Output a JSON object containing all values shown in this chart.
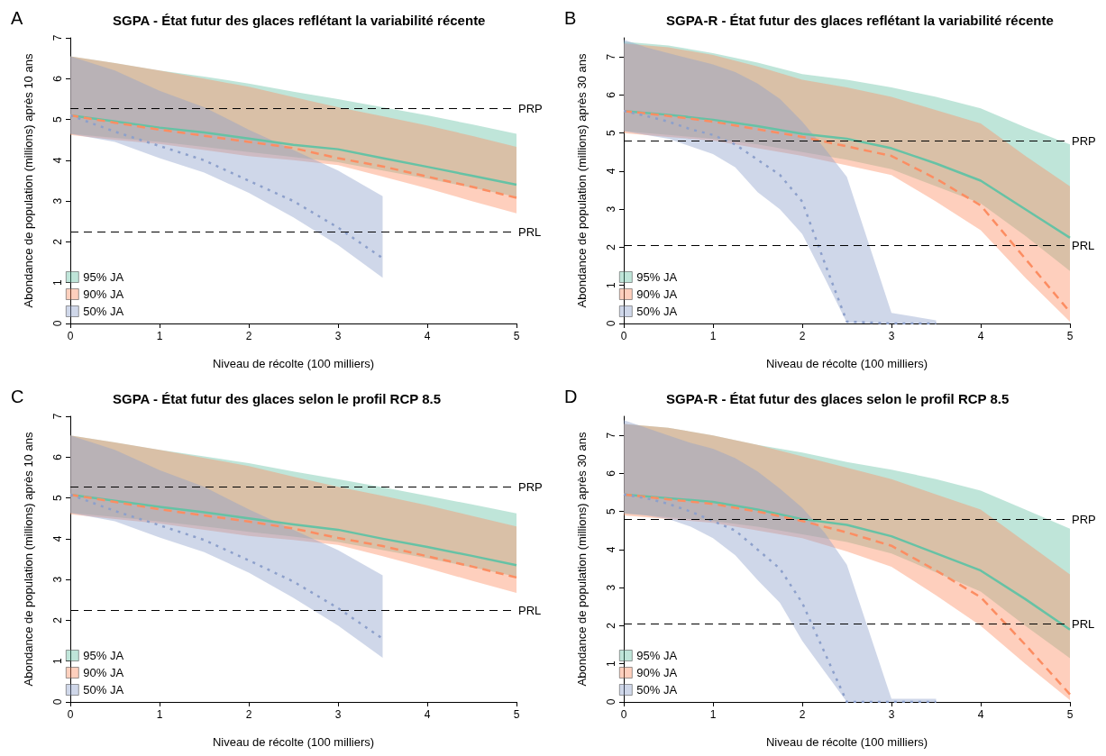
{
  "chart_data": [
    {
      "type": "line",
      "title": "SGPA - État futur des glaces reflétant la variabilité récente",
      "annotations": [
        "A"
      ],
      "xlabel": "Niveau de récolte (100 milliers)",
      "ylabel": "Abondance de population (millions) après 10 ans",
      "xlim": [
        0,
        5
      ],
      "xticks": [
        0,
        1,
        2,
        3,
        4,
        5
      ],
      "ylim": [
        0,
        7
      ],
      "yticks": [
        0,
        1,
        2,
        3,
        4,
        5,
        6,
        7
      ],
      "legend": "bottom left",
      "ref_lines": [
        {
          "axis": "y",
          "value": 5.27,
          "label": "PRP",
          "line_style": "dashed",
          "color": "#000000"
        },
        {
          "axis": "y",
          "value": 2.25,
          "label": "PRL",
          "line_style": "dashed",
          "color": "#000000"
        }
      ],
      "series": [
        {
          "name": "95% JA",
          "color": "#66c2a5",
          "line_style": "solid",
          "x": [
            0,
            0.5,
            1,
            1.5,
            2,
            2.5,
            3,
            3.5,
            4,
            4.5,
            5
          ],
          "values": [
            5.1,
            4.95,
            4.8,
            4.68,
            4.53,
            4.38,
            4.27,
            4.05,
            3.84,
            3.62,
            3.4
          ],
          "lower": [
            4.65,
            4.55,
            4.45,
            4.33,
            4.2,
            4.08,
            3.95,
            3.75,
            3.55,
            3.33,
            3.1
          ],
          "upper": [
            6.55,
            6.38,
            6.2,
            6.05,
            5.88,
            5.68,
            5.5,
            5.3,
            5.1,
            4.88,
            4.65
          ]
        },
        {
          "name": "90% JA",
          "color": "#fc8d62",
          "line_style": "dashed",
          "x": [
            0,
            0.5,
            1,
            1.5,
            2,
            2.5,
            3,
            3.5,
            4,
            4.5,
            5
          ],
          "values": [
            5.1,
            4.92,
            4.75,
            4.6,
            4.45,
            4.3,
            4.05,
            3.85,
            3.6,
            3.35,
            3.08
          ],
          "lower": [
            4.62,
            4.5,
            4.4,
            4.25,
            4.1,
            4.0,
            3.88,
            3.6,
            3.31,
            3.0,
            2.7
          ],
          "upper": [
            6.55,
            6.38,
            6.2,
            6.0,
            5.8,
            5.55,
            5.3,
            5.08,
            4.85,
            4.6,
            4.33
          ]
        },
        {
          "name": "50% JA",
          "color": "#8da0cb",
          "line_style": "dotted",
          "x": [
            0,
            0.5,
            1,
            1.5,
            2,
            2.5,
            3,
            3.5
          ],
          "values": [
            5.1,
            4.7,
            4.35,
            4.0,
            3.5,
            3.0,
            2.35,
            1.6
          ],
          "lower": [
            4.65,
            4.45,
            4.05,
            3.7,
            3.2,
            2.6,
            1.92,
            1.12
          ],
          "upper": [
            6.55,
            6.2,
            5.7,
            5.3,
            4.75,
            4.25,
            3.75,
            3.12
          ]
        }
      ]
    },
    {
      "type": "line",
      "title": "SGPA-R - État futur des glaces reflétant la variabilité récente",
      "annotations": [
        "B"
      ],
      "xlabel": "Niveau de récolte (100 milliers)",
      "ylabel": "Abondance de population (millions) après 30 ans",
      "xlim": [
        0,
        5
      ],
      "xticks": [
        0,
        1,
        2,
        3,
        4,
        5
      ],
      "ylim": [
        0,
        7.5
      ],
      "yticks": [
        0,
        1,
        2,
        3,
        4,
        5,
        6,
        7
      ],
      "legend": "bottom left",
      "ref_lines": [
        {
          "axis": "y",
          "value": 4.8,
          "label": "PRP",
          "line_style": "dashed",
          "color": "#000000"
        },
        {
          "axis": "y",
          "value": 2.05,
          "label": "PRL",
          "line_style": "dashed",
          "color": "#000000"
        }
      ],
      "series": [
        {
          "name": "95% JA",
          "color": "#66c2a5",
          "line_style": "solid",
          "x": [
            0,
            0.5,
            1,
            1.5,
            2,
            2.5,
            3,
            3.5,
            4,
            4.5,
            5
          ],
          "values": [
            5.58,
            5.48,
            5.35,
            5.18,
            4.98,
            4.85,
            4.6,
            4.2,
            3.75,
            3.0,
            2.25
          ],
          "lower": [
            5.05,
            4.95,
            4.85,
            4.7,
            4.5,
            4.3,
            4.05,
            3.6,
            3.15,
            2.3,
            1.38
          ],
          "upper": [
            7.4,
            7.3,
            7.1,
            6.85,
            6.55,
            6.4,
            6.2,
            5.95,
            5.65,
            5.15,
            4.7
          ]
        },
        {
          "name": "90% JA",
          "color": "#fc8d62",
          "line_style": "dashed",
          "x": [
            0,
            0.5,
            1,
            1.5,
            2,
            2.5,
            3,
            3.5,
            4,
            4.5,
            5
          ],
          "values": [
            5.58,
            5.45,
            5.3,
            5.1,
            4.9,
            4.65,
            4.4,
            3.8,
            3.1,
            1.7,
            0.3
          ],
          "lower": [
            5.0,
            4.9,
            4.8,
            4.6,
            4.4,
            4.15,
            3.9,
            3.2,
            2.45,
            1.2,
            0.05
          ],
          "upper": [
            7.35,
            7.25,
            7.05,
            6.75,
            6.4,
            6.2,
            5.95,
            5.6,
            5.25,
            4.4,
            3.6
          ]
        },
        {
          "name": "50% JA",
          "color": "#8da0cb",
          "line_style": "dotted",
          "x": [
            0,
            0.25,
            0.5,
            0.75,
            1,
            1.25,
            1.5,
            1.75,
            2,
            2.25,
            2.5,
            3,
            3.5
          ],
          "values": [
            5.58,
            5.45,
            5.3,
            5.1,
            4.95,
            4.7,
            4.3,
            3.9,
            3.2,
            1.6,
            0.05,
            0,
            0
          ],
          "lower": [
            5.05,
            4.95,
            4.85,
            4.65,
            4.45,
            4.1,
            3.45,
            3.0,
            2.35,
            1.2,
            0.02,
            0,
            0
          ],
          "upper": [
            7.45,
            7.25,
            7.1,
            6.95,
            6.8,
            6.6,
            6.3,
            5.9,
            5.3,
            4.6,
            3.85,
            0.28,
            0.08
          ]
        }
      ]
    },
    {
      "type": "line",
      "title": "SGPA - État futur des glaces selon le profil RCP 8.5",
      "annotations": [
        "C"
      ],
      "xlabel": "Niveau de récolte (100 milliers)",
      "ylabel": "Abondance de population (millions) après 10 ans",
      "xlim": [
        0,
        5
      ],
      "xticks": [
        0,
        1,
        2,
        3,
        4,
        5
      ],
      "ylim": [
        0,
        7
      ],
      "yticks": [
        0,
        1,
        2,
        3,
        4,
        5,
        6,
        7
      ],
      "legend": "bottom left",
      "ref_lines": [
        {
          "axis": "y",
          "value": 5.27,
          "label": "PRP",
          "line_style": "dashed",
          "color": "#000000"
        },
        {
          "axis": "y",
          "value": 2.25,
          "label": "PRL",
          "line_style": "dashed",
          "color": "#000000"
        }
      ],
      "series": [
        {
          "name": "95% JA",
          "color": "#66c2a5",
          "line_style": "solid",
          "x": [
            0,
            0.5,
            1,
            1.5,
            2,
            2.5,
            3,
            3.5,
            4,
            4.5,
            5
          ],
          "values": [
            5.08,
            4.93,
            4.78,
            4.65,
            4.5,
            4.35,
            4.22,
            4.0,
            3.8,
            3.58,
            3.35
          ],
          "lower": [
            4.63,
            4.53,
            4.42,
            4.3,
            4.17,
            4.05,
            3.92,
            3.72,
            3.52,
            3.3,
            3.07
          ],
          "upper": [
            6.53,
            6.36,
            6.18,
            6.02,
            5.85,
            5.65,
            5.46,
            5.26,
            5.05,
            4.84,
            4.62
          ]
        },
        {
          "name": "90% JA",
          "color": "#fc8d62",
          "line_style": "dashed",
          "x": [
            0,
            0.5,
            1,
            1.5,
            2,
            2.5,
            3,
            3.5,
            4,
            4.5,
            5
          ],
          "values": [
            5.08,
            4.9,
            4.72,
            4.57,
            4.42,
            4.25,
            4.02,
            3.82,
            3.57,
            3.32,
            3.05
          ],
          "lower": [
            4.6,
            4.48,
            4.37,
            4.22,
            4.07,
            3.97,
            3.85,
            3.57,
            3.28,
            2.97,
            2.67
          ],
          "upper": [
            6.53,
            6.36,
            6.18,
            5.98,
            5.78,
            5.52,
            5.27,
            5.05,
            4.82,
            4.56,
            4.3
          ]
        },
        {
          "name": "50% JA",
          "color": "#8da0cb",
          "line_style": "dotted",
          "x": [
            0,
            0.5,
            1,
            1.5,
            2,
            2.5,
            3,
            3.5
          ],
          "values": [
            5.08,
            4.68,
            4.33,
            3.97,
            3.47,
            2.95,
            2.3,
            1.55
          ],
          "lower": [
            4.63,
            4.43,
            4.03,
            3.67,
            3.17,
            2.55,
            1.87,
            1.08
          ],
          "upper": [
            6.53,
            6.18,
            5.68,
            5.27,
            4.72,
            4.22,
            3.72,
            3.1
          ]
        }
      ]
    },
    {
      "type": "line",
      "title": "SGPA-R - État futur des glaces selon le profil RCP 8.5",
      "annotations": [
        "D"
      ],
      "xlabel": "Niveau de récolte (100 milliers)",
      "ylabel": "Abondance de population (millions) après 30 ans",
      "xlim": [
        0,
        5
      ],
      "xticks": [
        0,
        1,
        2,
        3,
        4,
        5
      ],
      "ylim": [
        0,
        7.5
      ],
      "yticks": [
        0,
        1,
        2,
        3,
        4,
        5,
        6,
        7
      ],
      "legend": "bottom left",
      "ref_lines": [
        {
          "axis": "y",
          "value": 4.8,
          "label": "PRP",
          "line_style": "dashed",
          "color": "#000000"
        },
        {
          "axis": "y",
          "value": 2.05,
          "label": "PRL",
          "line_style": "dashed",
          "color": "#000000"
        }
      ],
      "series": [
        {
          "name": "95% JA",
          "color": "#66c2a5",
          "line_style": "solid",
          "x": [
            0,
            0.5,
            1,
            1.5,
            2,
            2.5,
            3,
            3.5,
            4,
            4.5,
            5
          ],
          "values": [
            5.45,
            5.35,
            5.25,
            5.05,
            4.8,
            4.65,
            4.35,
            3.9,
            3.45,
            2.7,
            1.9
          ],
          "lower": [
            4.95,
            4.85,
            4.75,
            4.6,
            4.4,
            4.2,
            3.9,
            3.4,
            2.9,
            2.0,
            1.15
          ],
          "upper": [
            7.3,
            7.2,
            7.0,
            6.75,
            6.55,
            6.3,
            6.1,
            5.85,
            5.55,
            5.05,
            4.55
          ]
        },
        {
          "name": "90% JA",
          "color": "#fc8d62",
          "line_style": "dashed",
          "x": [
            0,
            0.5,
            1,
            1.5,
            2,
            2.5,
            3,
            3.5,
            4,
            4.5,
            5
          ],
          "values": [
            5.45,
            5.32,
            5.2,
            5.0,
            4.75,
            4.45,
            4.1,
            3.45,
            2.75,
            1.5,
            0.2
          ],
          "lower": [
            4.9,
            4.8,
            4.7,
            4.5,
            4.3,
            3.95,
            3.55,
            2.8,
            2.0,
            1.0,
            0.05
          ],
          "upper": [
            7.3,
            7.2,
            7.0,
            6.75,
            6.45,
            6.15,
            5.85,
            5.45,
            5.05,
            4.2,
            3.35
          ]
        },
        {
          "name": "50% JA",
          "color": "#8da0cb",
          "line_style": "dotted",
          "x": [
            0,
            0.25,
            0.5,
            0.75,
            1,
            1.25,
            1.5,
            1.75,
            2,
            2.25,
            2.5,
            3,
            3.5
          ],
          "values": [
            5.45,
            5.35,
            5.2,
            5.0,
            4.75,
            4.5,
            4.0,
            3.5,
            2.6,
            1.3,
            0.0,
            0,
            0
          ],
          "lower": [
            4.95,
            4.9,
            4.8,
            4.6,
            4.3,
            3.85,
            3.2,
            2.6,
            1.6,
            0.8,
            0.0,
            0,
            0
          ],
          "upper": [
            7.4,
            7.2,
            7.0,
            6.8,
            6.65,
            6.4,
            6.05,
            5.6,
            5.1,
            4.45,
            3.6,
            0.08,
            0.08
          ]
        }
      ]
    }
  ]
}
